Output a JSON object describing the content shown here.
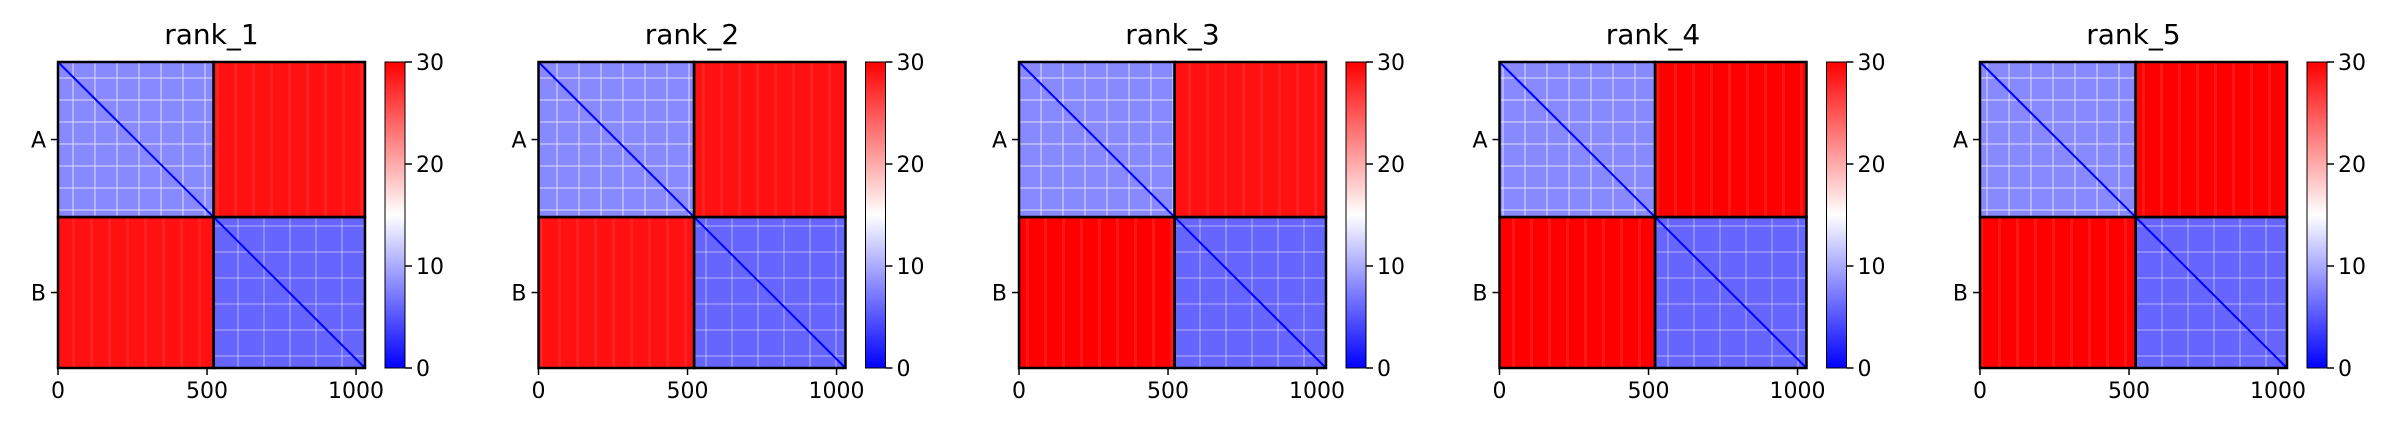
{
  "chart_data": [
    {
      "type": "heatmap",
      "title": "rank_1",
      "xlim": [
        0,
        1030
      ],
      "xticks": [
        0,
        500,
        1000
      ],
      "row_labels": [
        "A",
        "B"
      ],
      "blocks": [
        {
          "label": "A",
          "start": 0,
          "end": 522
        },
        {
          "label": "B",
          "start": 522,
          "end": 1030
        }
      ],
      "colorbar": {
        "min": 0,
        "max": 30,
        "ticks": [
          0,
          10,
          20,
          30
        ],
        "colormap": "bwr"
      },
      "block_values": {
        "A-A": 8,
        "A-B": 29,
        "B-A": 29,
        "B-B": 6
      }
    },
    {
      "type": "heatmap",
      "title": "rank_2",
      "xlim": [
        0,
        1030
      ],
      "xticks": [
        0,
        500,
        1000
      ],
      "row_labels": [
        "A",
        "B"
      ],
      "blocks": [
        {
          "label": "A",
          "start": 0,
          "end": 522
        },
        {
          "label": "B",
          "start": 522,
          "end": 1030
        }
      ],
      "colorbar": {
        "min": 0,
        "max": 30,
        "ticks": [
          0,
          10,
          20,
          30
        ],
        "colormap": "bwr"
      },
      "block_values": {
        "A-A": 8,
        "A-B": 29,
        "B-A": 29,
        "B-B": 6
      }
    },
    {
      "type": "heatmap",
      "title": "rank_3",
      "xlim": [
        0,
        1030
      ],
      "xticks": [
        0,
        500,
        1000
      ],
      "row_labels": [
        "A",
        "B"
      ],
      "blocks": [
        {
          "label": "A",
          "start": 0,
          "end": 522
        },
        {
          "label": "B",
          "start": 522,
          "end": 1030
        }
      ],
      "colorbar": {
        "min": 0,
        "max": 30,
        "ticks": [
          0,
          10,
          20,
          30
        ],
        "colormap": "bwr"
      },
      "block_values": {
        "A-A": 8,
        "A-B": 29,
        "B-A": 30,
        "B-B": 6
      }
    },
    {
      "type": "heatmap",
      "title": "rank_4",
      "xlim": [
        0,
        1030
      ],
      "xticks": [
        0,
        500,
        1000
      ],
      "row_labels": [
        "A",
        "B"
      ],
      "blocks": [
        {
          "label": "A",
          "start": 0,
          "end": 522
        },
        {
          "label": "B",
          "start": 522,
          "end": 1030
        }
      ],
      "colorbar": {
        "min": 0,
        "max": 30,
        "ticks": [
          0,
          10,
          20,
          30
        ],
        "colormap": "bwr"
      },
      "block_values": {
        "A-A": 8,
        "A-B": 30,
        "B-A": 30,
        "B-B": 6
      }
    },
    {
      "type": "heatmap",
      "title": "rank_5",
      "xlim": [
        0,
        1030
      ],
      "xticks": [
        0,
        500,
        1000
      ],
      "row_labels": [
        "A",
        "B"
      ],
      "blocks": [
        {
          "label": "A",
          "start": 0,
          "end": 522
        },
        {
          "label": "B",
          "start": 522,
          "end": 1030
        }
      ],
      "colorbar": {
        "min": 0,
        "max": 30,
        "ticks": [
          0,
          10,
          20,
          30
        ],
        "colormap": "bwr"
      },
      "block_values": {
        "A-A": 8,
        "A-B": 30,
        "B-A": 30,
        "B-B": 6
      }
    }
  ]
}
